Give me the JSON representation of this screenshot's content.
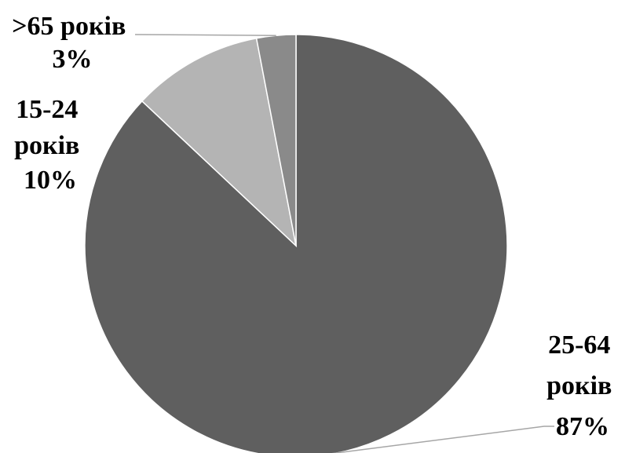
{
  "chart_data": {
    "type": "pie",
    "title": "",
    "start_angle_deg": 0,
    "direction": "clockwise",
    "slices": [
      {
        "name": "25-64 років",
        "value": 87,
        "label_lines": [
          "25-64",
          "років",
          "87%"
        ],
        "color": "#5f5f5f"
      },
      {
        "name": "15-24 років",
        "value": 10,
        "label_lines": [
          "15-24",
          "років",
          "10%"
        ],
        "color": "#b4b4b4"
      },
      {
        "name": ">65 років",
        "value": 3,
        "label_lines": [
          ">65 років",
          "3%"
        ],
        "color": "#8a8a8a"
      }
    ],
    "slice_border_color": "#ffffff",
    "leader_line_color": "#a6a6a6",
    "legend": "none"
  }
}
